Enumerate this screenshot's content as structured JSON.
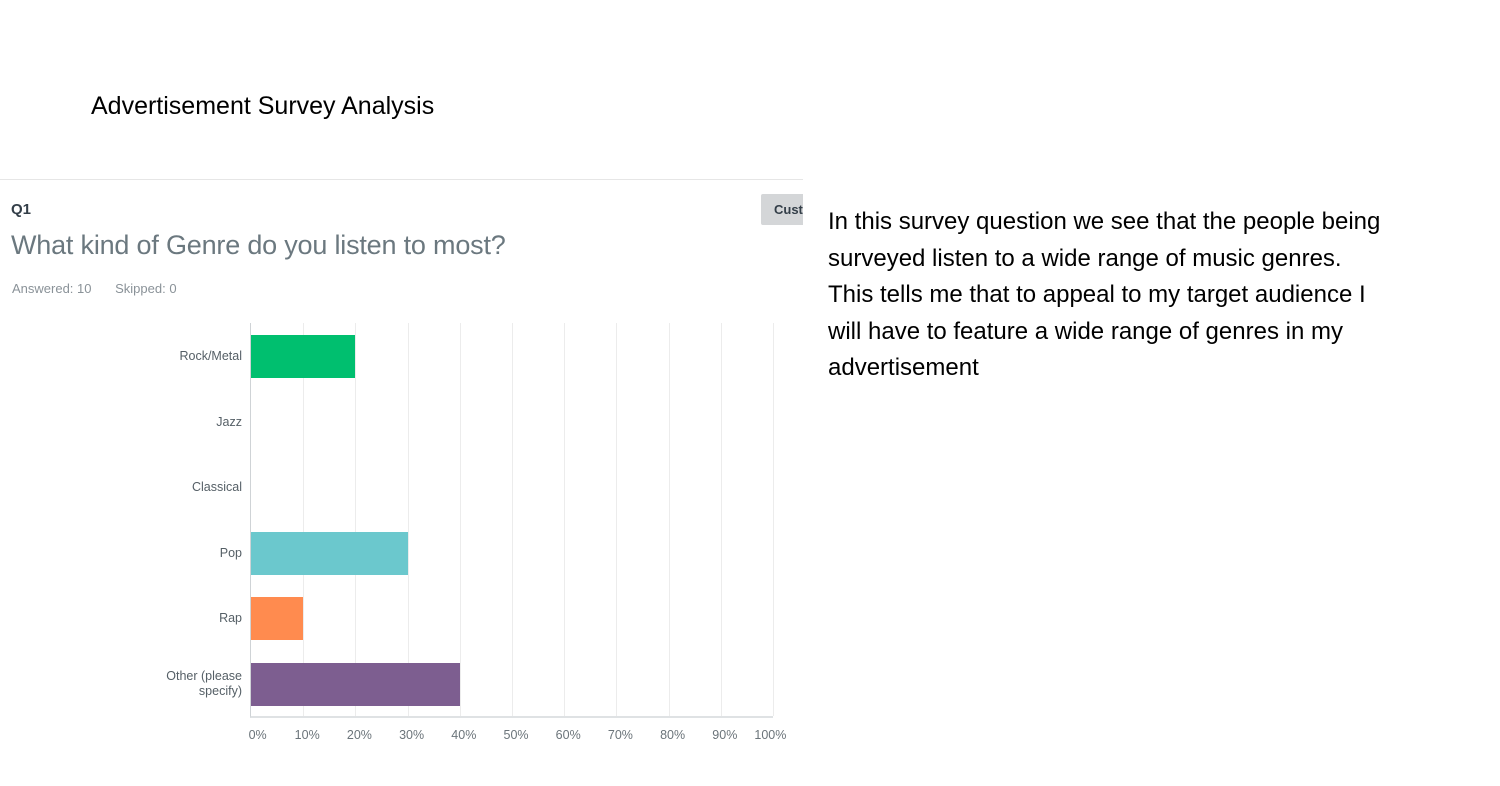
{
  "slide": {
    "title": "Advertisement Survey Analysis",
    "commentary": "In this survey question we see that the people being surveyed listen to a wide range of music genres. This tells me that to appeal to my target audience I will have to feature a wide range of genres in my advertisement"
  },
  "question": {
    "number": "Q1",
    "title": "What kind of Genre do you listen to most?",
    "answered": "Answered: 10",
    "skipped": "Skipped: 0",
    "customize_button": "Cust"
  },
  "colors": {
    "rock_metal": "#00bf6f",
    "pop": "#6bc8cd",
    "rap": "#ff8b4f",
    "other": "#7d5e90"
  },
  "chart_data": {
    "type": "bar",
    "orientation": "horizontal",
    "title": "What kind of Genre do you listen to most?",
    "categories": [
      "Rock/Metal",
      "Jazz",
      "Classical",
      "Pop",
      "Rap",
      "Other (please specify)"
    ],
    "values": [
      20,
      0,
      0,
      30,
      10,
      40
    ],
    "colors": [
      "#00bf6f",
      null,
      null,
      "#6bc8cd",
      "#ff8b4f",
      "#7d5e90"
    ],
    "xlabel": "",
    "ylabel": "",
    "xlim": [
      0,
      100
    ],
    "x_ticks": [
      "0%",
      "10%",
      "20%",
      "30%",
      "40%",
      "50%",
      "60%",
      "70%",
      "80%",
      "90%",
      "100%"
    ],
    "grid": true,
    "legend": null
  }
}
